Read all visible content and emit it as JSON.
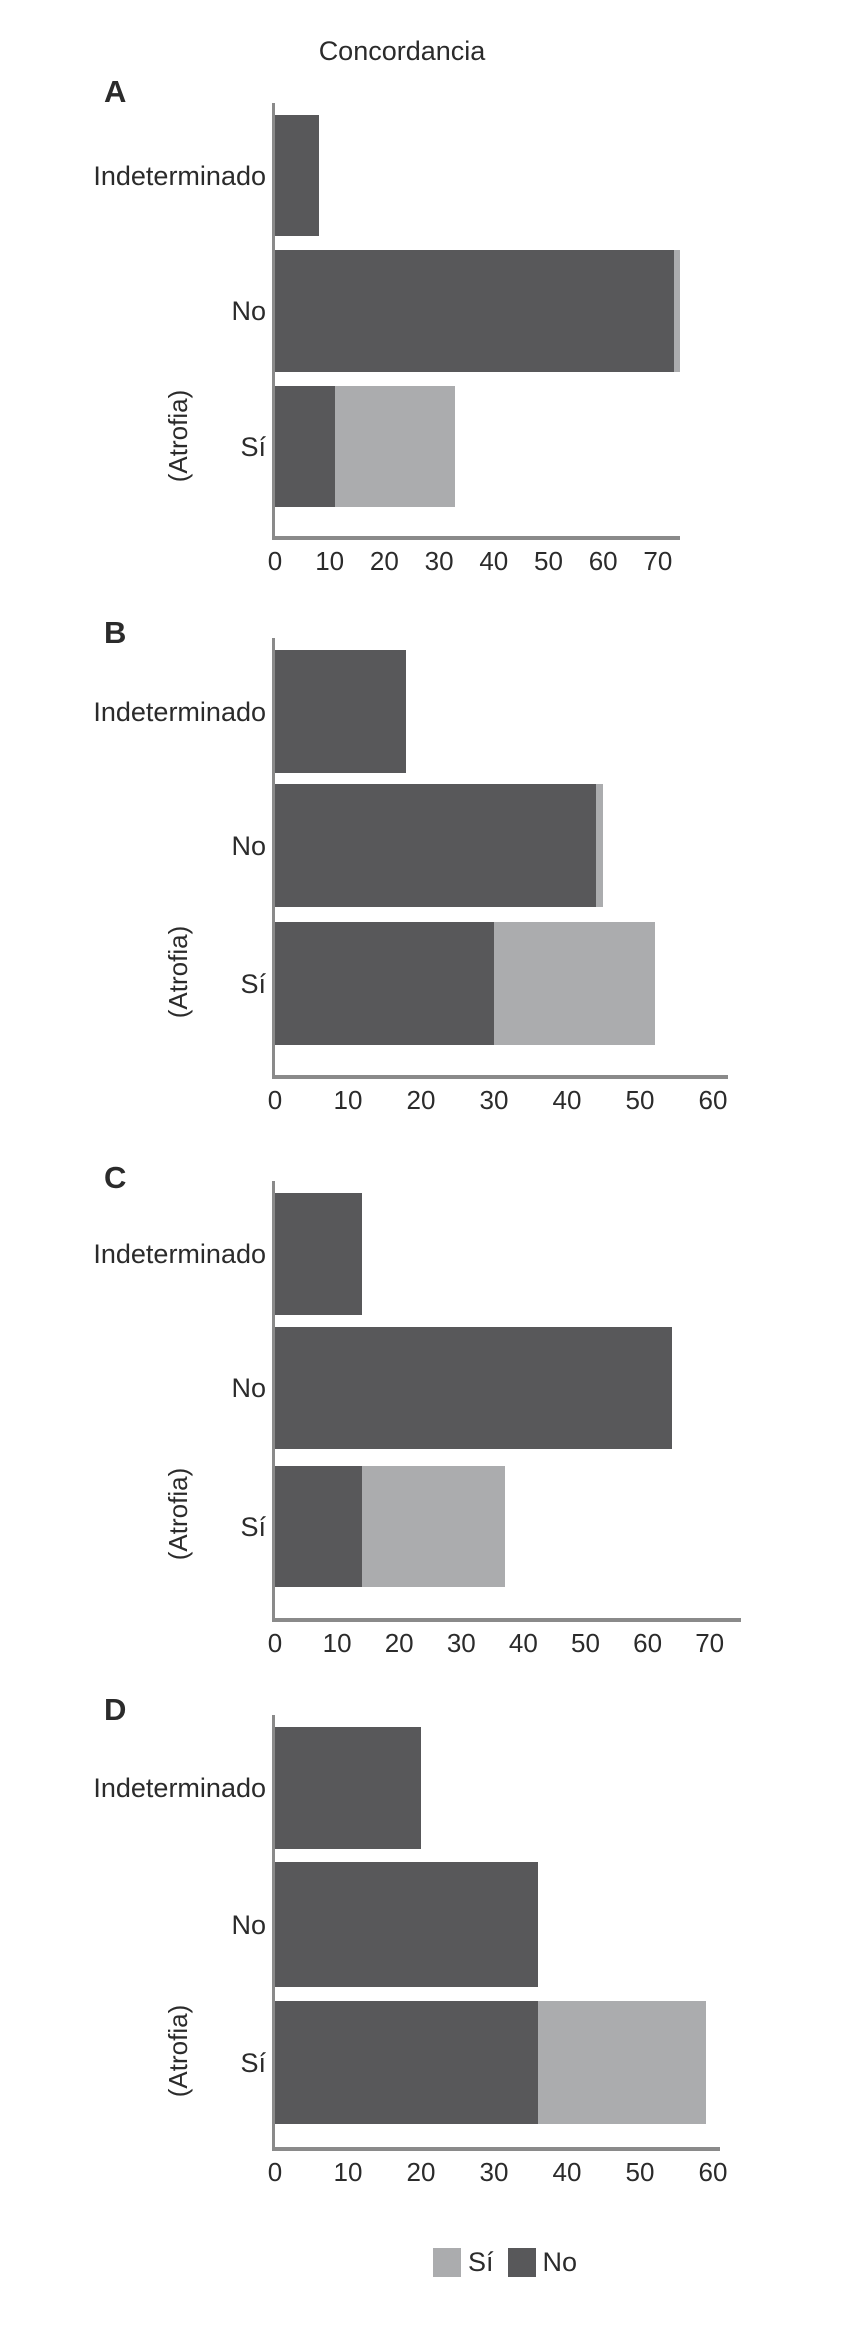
{
  "figure": {
    "title": "Concordancia"
  },
  "colors": {
    "dark_no": "#58585A",
    "light_si": "#ABACAE",
    "axis_line": "#8A8A8A",
    "text": "#2B2B2B"
  },
  "legend": {
    "items": [
      {
        "label": "Sí",
        "color": "#ABACAE"
      },
      {
        "label": "No",
        "color": "#58585A"
      }
    ]
  },
  "chart_data": [
    {
      "id": "A",
      "panel_label": "A",
      "type": "bar",
      "orientation": "horizontal",
      "stacked": true,
      "categories": [
        "Indeterminado",
        "No",
        "Sí"
      ],
      "ylabel": "(Atrofia)",
      "series": [
        {
          "name": "No",
          "color": "#58585A",
          "values": [
            8,
            73,
            11
          ]
        },
        {
          "name": "Sí",
          "color": "#ABACAE",
          "values": [
            0,
            1,
            22
          ]
        }
      ],
      "xticks": [
        0,
        10,
        20,
        30,
        40,
        50,
        60,
        70
      ],
      "xlim": [
        0,
        74
      ],
      "grid": false,
      "legend_position": "bottom-shared"
    },
    {
      "id": "B",
      "panel_label": "B",
      "type": "bar",
      "orientation": "horizontal",
      "stacked": true,
      "categories": [
        "Indeterminado",
        "No",
        "Sí"
      ],
      "ylabel": "(Atrofia)",
      "series": [
        {
          "name": "No",
          "color": "#58585A",
          "values": [
            18,
            44,
            30
          ]
        },
        {
          "name": "Sí",
          "color": "#ABACAE",
          "values": [
            0,
            1,
            22
          ]
        }
      ],
      "xticks": [
        0,
        10,
        20,
        30,
        40,
        50,
        60
      ],
      "xlim": [
        0,
        62
      ],
      "grid": false,
      "legend_position": "bottom-shared"
    },
    {
      "id": "C",
      "panel_label": "C",
      "type": "bar",
      "orientation": "horizontal",
      "stacked": true,
      "categories": [
        "Indeterminado",
        "No",
        "Sí"
      ],
      "ylabel": "(Atrofia)",
      "series": [
        {
          "name": "No",
          "color": "#58585A",
          "values": [
            14,
            64,
            14
          ]
        },
        {
          "name": "Sí",
          "color": "#ABACAE",
          "values": [
            0,
            0,
            23
          ]
        }
      ],
      "xticks": [
        0,
        10,
        20,
        30,
        40,
        50,
        60,
        70
      ],
      "xlim": [
        0,
        75
      ],
      "grid": false,
      "legend_position": "bottom-shared"
    },
    {
      "id": "D",
      "panel_label": "D",
      "type": "bar",
      "orientation": "horizontal",
      "stacked": true,
      "categories": [
        "Indeterminado",
        "No",
        "Sí"
      ],
      "ylabel": "(Atrofia)",
      "series": [
        {
          "name": "No",
          "color": "#58585A",
          "values": [
            20,
            36,
            36
          ]
        },
        {
          "name": "Sí",
          "color": "#ABACAE",
          "values": [
            0,
            0,
            23
          ]
        }
      ],
      "xticks": [
        0,
        10,
        20,
        30,
        40,
        50,
        60
      ],
      "xlim": [
        0,
        61
      ],
      "grid": false,
      "legend_position": "bottom-shared"
    }
  ]
}
